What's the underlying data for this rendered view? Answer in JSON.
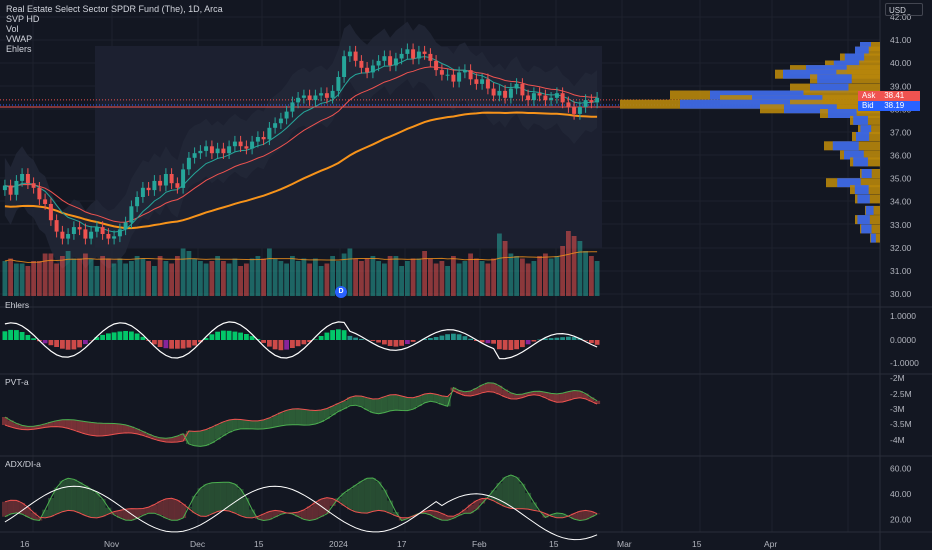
{
  "header": {
    "symbol_title": "Real Estate Select Sector SPDR Fund (The), 1D, Arca",
    "indicators": [
      "SVP HD",
      "Vol",
      "VWAP",
      "Ehlers"
    ],
    "currency": "USD"
  },
  "price_tags": {
    "ask_label": "Ask",
    "ask_value": "38.41",
    "bid_label": "Bid",
    "bid_value": "38.19"
  },
  "event_badge": "D",
  "price_axis": [
    "42.00",
    "41.00",
    "40.00",
    "39.00",
    "38.00",
    "37.00",
    "36.00",
    "35.00",
    "34.00",
    "33.00",
    "32.00",
    "31.00",
    "30.00"
  ],
  "x_axis": [
    "16",
    "Nov",
    "Dec",
    "15",
    "2024",
    "17",
    "Feb",
    "15",
    "Mar",
    "15",
    "Apr"
  ],
  "panes": [
    {
      "title": "Ehlers",
      "ticks": [
        "1.0000",
        "0.0000",
        "-1.0000"
      ]
    },
    {
      "title": "PVT-a",
      "ticks": [
        "-2M",
        "-2.5M",
        "-3M",
        "-3.5M",
        "-4M"
      ]
    },
    {
      "title": "ADX/DI-a",
      "ticks": [
        "60.00",
        "40.00",
        "20.00"
      ]
    }
  ],
  "colors": {
    "up": "#26a69a",
    "down": "#ef5350",
    "background": "#131722",
    "ema_fast": "#26a69a",
    "ema_slow": "#f7931a",
    "ema_red": "#ef5350",
    "profile_blue": "#2962ff",
    "profile_gold": "#f9a825"
  },
  "chart_data": {
    "type": "candlestick",
    "interval": "1D",
    "close": [
      34.7,
      34.3,
      34.9,
      35.2,
      34.8,
      34.6,
      34.1,
      33.9,
      33.2,
      32.7,
      32.4,
      32.6,
      32.9,
      32.8,
      32.4,
      32.7,
      32.9,
      32.6,
      32.4,
      32.5,
      32.8,
      33.1,
      33.8,
      34.2,
      34.6,
      34.5,
      34.9,
      34.7,
      35.2,
      34.8,
      34.6,
      35.4,
      35.9,
      36.1,
      36.2,
      36.4,
      36.1,
      36.3,
      36.1,
      36.4,
      36.6,
      36.4,
      36.3,
      36.6,
      36.8,
      36.7,
      37.2,
      37.4,
      37.6,
      37.9,
      38.3,
      38.5,
      38.6,
      38.4,
      38.6,
      38.7,
      38.5,
      38.8,
      39.4,
      40.3,
      40.5,
      40.1,
      39.8,
      39.6,
      39.9,
      40.1,
      40.3,
      39.9,
      40.2,
      40.4,
      40.6,
      40.2,
      40.5,
      40.4,
      40.1,
      39.7,
      39.5,
      39.5,
      39.2,
      39.6,
      39.7,
      39.3,
      39.1,
      39.3,
      38.9,
      38.6,
      38.8,
      38.5,
      38.9,
      39.1,
      38.6,
      38.4,
      38.7,
      38.6,
      38.4,
      38.5,
      38.7,
      38.3,
      38.1,
      37.8,
      38.1,
      38.4,
      38.3,
      38.5
    ],
    "volume": [
      14,
      15,
      13,
      13,
      12,
      14,
      14,
      17,
      17,
      13,
      16,
      18,
      15,
      15,
      17,
      15,
      12,
      16,
      15,
      13,
      15,
      13,
      14,
      16,
      15,
      14,
      12,
      16,
      14,
      13,
      16,
      19,
      18,
      15,
      14,
      13,
      14,
      16,
      14,
      13,
      15,
      12,
      13,
      15,
      16,
      15,
      19,
      15,
      14,
      13,
      16,
      14,
      15,
      13,
      15,
      12,
      13,
      16,
      14,
      17,
      19,
      15,
      14,
      15,
      16,
      14,
      13,
      16,
      16,
      12,
      14,
      15,
      15,
      18,
      15,
      13,
      14,
      12,
      16,
      13,
      14,
      17,
      15,
      14,
      13,
      15,
      25,
      22,
      17,
      16,
      15,
      13,
      14,
      16,
      17,
      15,
      16,
      20,
      26,
      24,
      22,
      18,
      16,
      14
    ],
    "price_range": [
      30,
      42
    ],
    "ask": 38.41,
    "bid": 38.19
  }
}
